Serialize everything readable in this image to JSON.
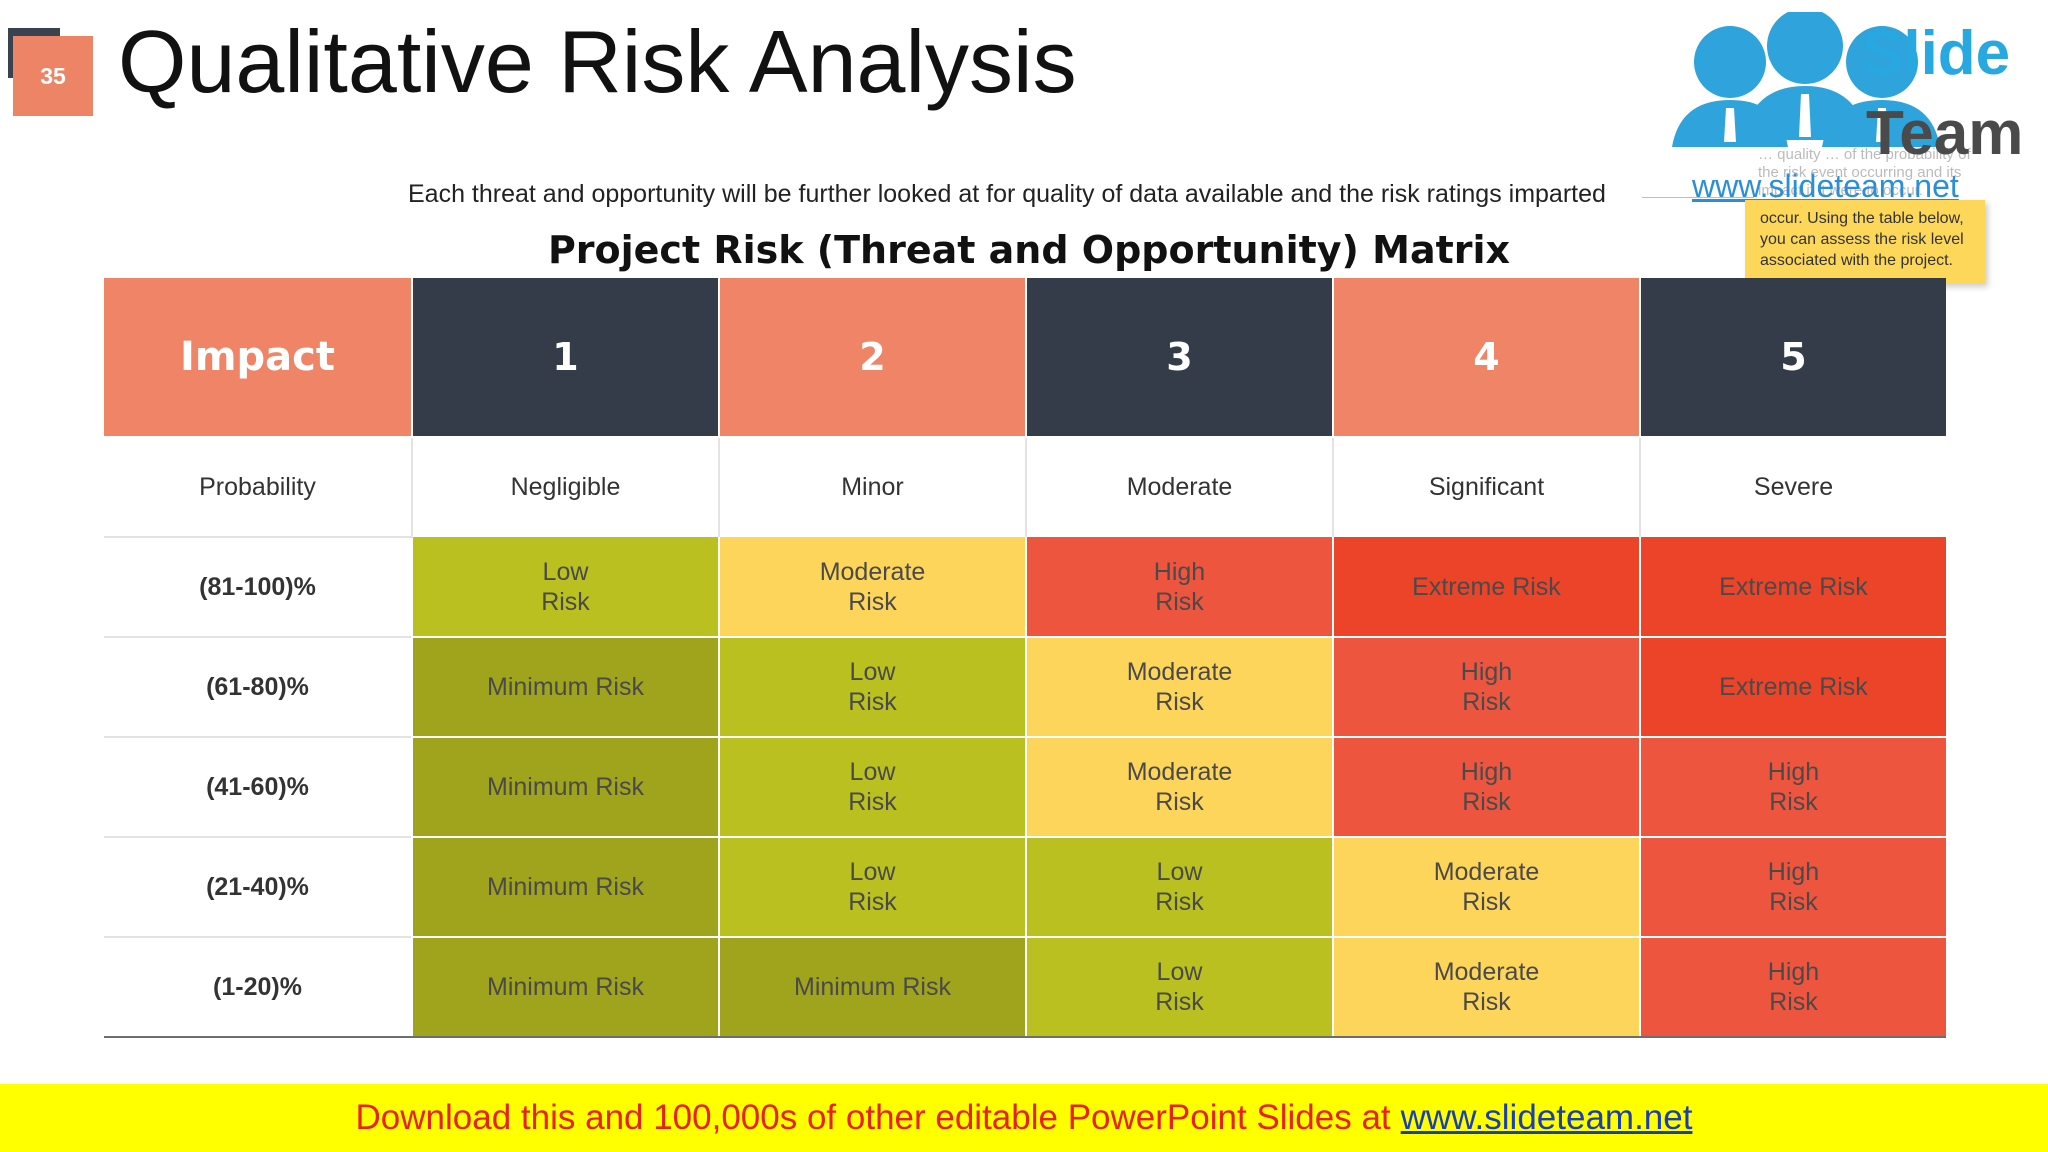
{
  "slide": {
    "page_number": "35",
    "title": "Qualitative Risk Analysis",
    "subtitle": "Each threat and opportunity will be further looked at for quality of data available and the risk ratings imparted",
    "matrix_title": "Project Risk (Threat and Opportunity) Matrix"
  },
  "logo": {
    "line1": "Slide",
    "line2": "Team",
    "url": "www.slideteam.net"
  },
  "note": {
    "faint_text": "… quality … of the probability of the risk event occurring and its impact if it were to occur.",
    "text": "occur. Using the table below, you can assess the risk level associated with the project."
  },
  "matrix": {
    "header_label": "Impact",
    "impact_levels": [
      "1",
      "2",
      "3",
      "4",
      "5"
    ],
    "severity_label": "Probability",
    "severity_names": [
      "Negligible",
      "Minor",
      "Moderate",
      "Significant",
      "Severe"
    ],
    "rows": [
      {
        "probability": "(81-100)%",
        "cells": [
          "Low\nRisk",
          "Moderate\nRisk",
          "High\nRisk",
          "Extreme Risk",
          "Extreme Risk"
        ]
      },
      {
        "probability": "(61-80)%",
        "cells": [
          "Minimum Risk",
          "Low\nRisk",
          "Moderate\nRisk",
          "High\nRisk",
          "Extreme Risk"
        ]
      },
      {
        "probability": "(41-60)%",
        "cells": [
          "Minimum Risk",
          "Low\nRisk",
          "Moderate\nRisk",
          "High\nRisk",
          "High\nRisk"
        ]
      },
      {
        "probability": "(21-40)%",
        "cells": [
          "Minimum Risk",
          "Low\nRisk",
          "Low\nRisk",
          "Moderate\nRisk",
          "High\nRisk"
        ]
      },
      {
        "probability": "(1-20)%",
        "cells": [
          "Minimum Risk",
          "Minimum Risk",
          "Low\nRisk",
          "Moderate\nRisk",
          "High\nRisk"
        ]
      }
    ]
  },
  "colors": {
    "header_salmon": "#ef8467",
    "header_dark": "#343c4a",
    "minimum": "#a0a31c",
    "low": "#b9c020",
    "moderate": "#fdd55a",
    "high": "#ee553f",
    "extreme": "#ec4428",
    "banner_bg": "#ffff00",
    "banner_text": "#e8211e"
  },
  "banner": {
    "text": "Download this and 100,000s of other editable PowerPoint Slides at",
    "link": "www.slideteam.net"
  }
}
